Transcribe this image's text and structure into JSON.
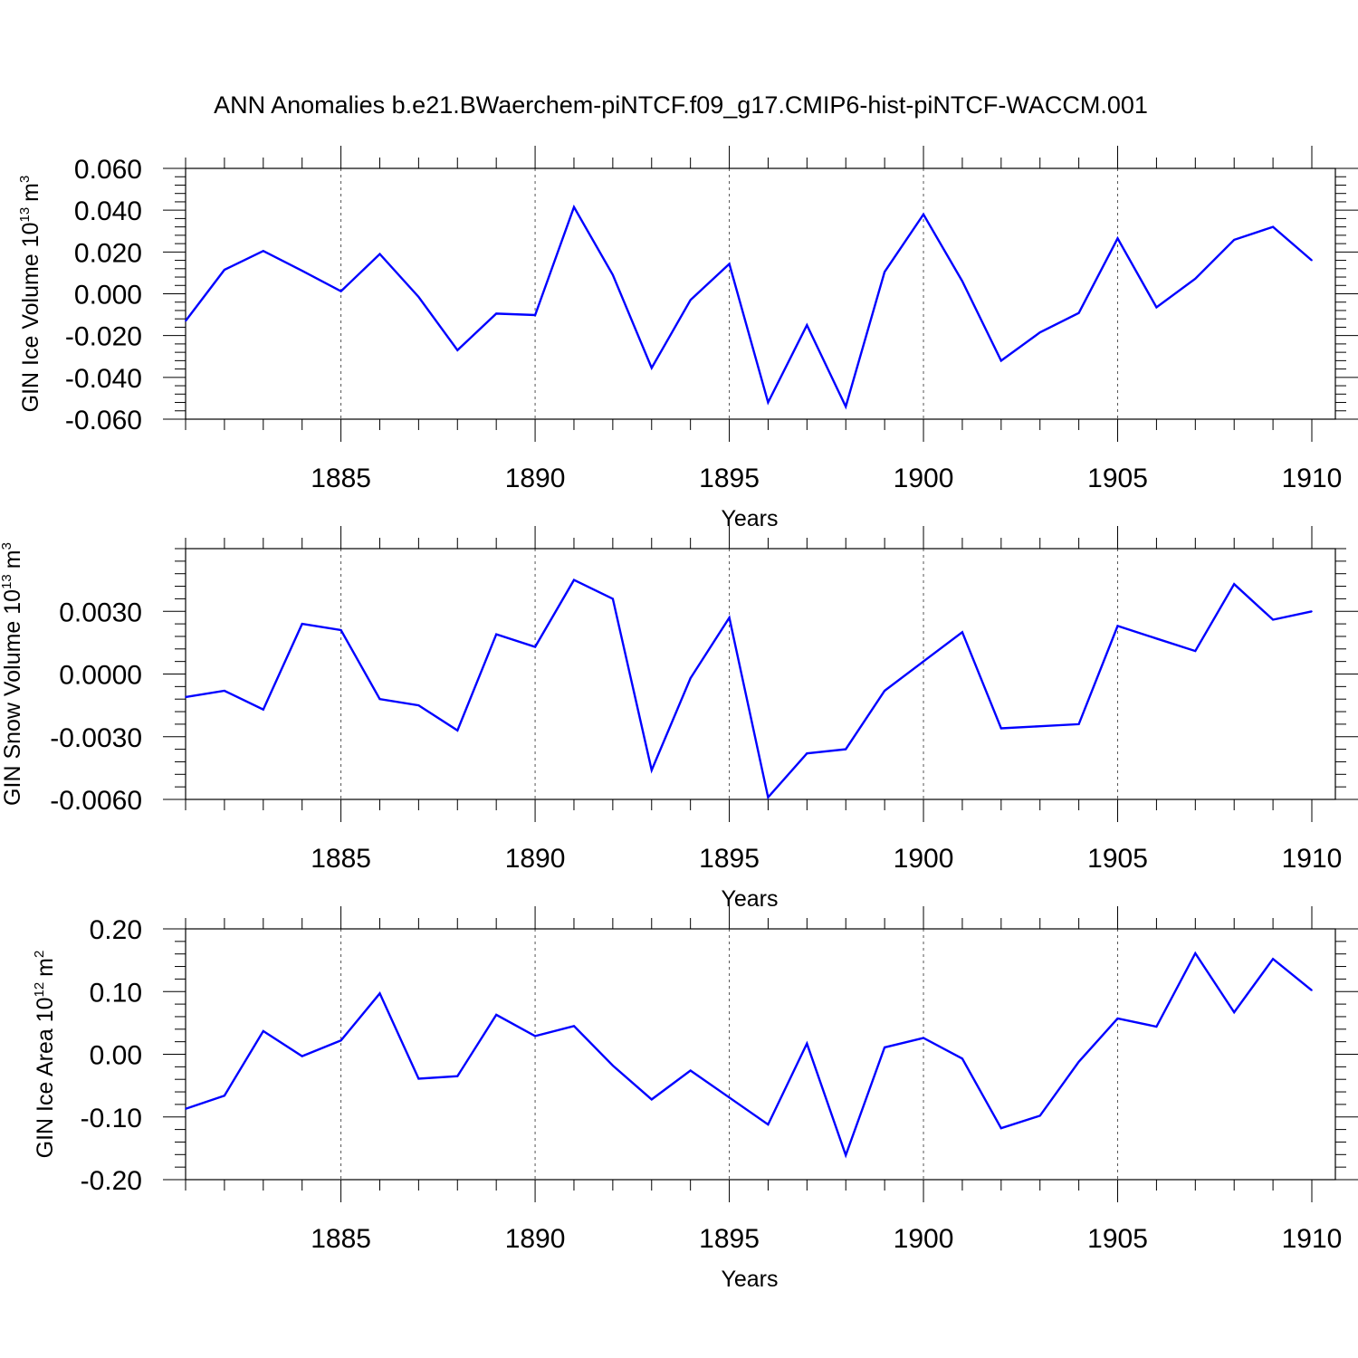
{
  "title": "ANN Anomalies b.e21.BWaerchem-piNTCF.f09_g17.CMIP6-hist-piNTCF-WACCM.001",
  "colors": {
    "line": "#0000ff",
    "axis": "#000000",
    "grid": "#555555"
  },
  "chart_data": [
    {
      "type": "line",
      "ylabel": "GIN Ice Volume 10",
      "ylabel_exp": "13",
      "ylabel_unit": "m",
      "ylabel_unit_exp": "3",
      "xlabel": "Years",
      "xlim": [
        1881,
        1910
      ],
      "ylim": [
        -0.06,
        0.06
      ],
      "x_ticks": [
        "1885",
        "1890",
        "1895",
        "1900",
        "1905",
        "1910"
      ],
      "y_ticks": [
        "0.060",
        "0.040",
        "0.020",
        "0.000",
        "-0.020",
        "-0.040",
        "-0.060"
      ],
      "grid": "vertical dashed at labeled years",
      "x": [
        1881,
        1882,
        1883,
        1884,
        1885,
        1886,
        1887,
        1888,
        1889,
        1890,
        1891,
        1892,
        1893,
        1894,
        1895,
        1896,
        1897,
        1898,
        1899,
        1900,
        1901,
        1902,
        1903,
        1904,
        1905,
        1906,
        1907,
        1908,
        1909,
        1910
      ],
      "values": [
        -0.013,
        0.0115,
        0.0205,
        0.011,
        0.0012,
        0.019,
        -0.0015,
        -0.027,
        -0.0095,
        -0.0102,
        0.0415,
        0.009,
        -0.0355,
        -0.003,
        0.0143,
        -0.052,
        -0.015,
        -0.054,
        0.0105,
        0.038,
        0.006,
        -0.032,
        -0.0185,
        -0.0092,
        0.0265,
        -0.0065,
        0.0072,
        0.0258,
        0.032,
        0.016
      ]
    },
    {
      "type": "line",
      "ylabel": "GIN Snow Volume 10",
      "ylabel_exp": "13",
      "ylabel_unit": "m",
      "ylabel_unit_exp": "3",
      "xlabel": "Years",
      "xlim": [
        1881,
        1910
      ],
      "ylim": [
        -0.006,
        0.006
      ],
      "x_ticks": [
        "1885",
        "1890",
        "1895",
        "1900",
        "1905",
        "1910"
      ],
      "y_ticks": [
        "0.0030",
        "0.0000",
        "-0.0030",
        "-0.0060"
      ],
      "grid": "vertical dashed at labeled years",
      "x": [
        1881,
        1882,
        1883,
        1884,
        1885,
        1886,
        1887,
        1888,
        1889,
        1890,
        1891,
        1892,
        1893,
        1894,
        1895,
        1896,
        1897,
        1898,
        1899,
        1900,
        1901,
        1902,
        1903,
        1904,
        1905,
        1906,
        1907,
        1908,
        1909,
        1910
      ],
      "values": [
        -0.0011,
        -0.0008,
        -0.0017,
        0.0024,
        0.0021,
        -0.0012,
        -0.0015,
        -0.0027,
        0.0019,
        0.0013,
        0.0045,
        0.0036,
        -0.0046,
        -0.0002,
        0.0027,
        -0.0059,
        -0.0038,
        -0.0036,
        -0.0008,
        0.0006,
        0.002,
        -0.0026,
        -0.0025,
        -0.0024,
        0.0023,
        0.0017,
        0.0011,
        0.0043,
        0.0026,
        0.003
      ]
    },
    {
      "type": "line",
      "ylabel": "GIN Ice Area 10",
      "ylabel_exp": "12",
      "ylabel_unit": "m",
      "ylabel_unit_exp": "2",
      "xlabel": "Years",
      "xlim": [
        1881,
        1910
      ],
      "ylim": [
        -0.2,
        0.2
      ],
      "x_ticks": [
        "1885",
        "1890",
        "1895",
        "1900",
        "1905",
        "1910"
      ],
      "y_ticks": [
        "0.20",
        "0.10",
        "0.00",
        "-0.10",
        "-0.20"
      ],
      "grid": "vertical dashed at labeled years",
      "x": [
        1881,
        1882,
        1883,
        1884,
        1885,
        1886,
        1887,
        1888,
        1889,
        1890,
        1891,
        1892,
        1893,
        1894,
        1895,
        1896,
        1897,
        1898,
        1899,
        1900,
        1901,
        1902,
        1903,
        1904,
        1905,
        1906,
        1907,
        1908,
        1909,
        1910
      ],
      "values": [
        -0.087,
        -0.066,
        0.037,
        -0.003,
        0.022,
        0.097,
        -0.039,
        -0.035,
        0.063,
        0.029,
        0.045,
        -0.018,
        -0.072,
        -0.026,
        -0.069,
        -0.112,
        0.017,
        -0.161,
        0.011,
        0.026,
        -0.007,
        -0.118,
        -0.098,
        -0.012,
        0.057,
        0.044,
        0.161,
        0.067,
        0.152,
        0.102
      ]
    }
  ]
}
